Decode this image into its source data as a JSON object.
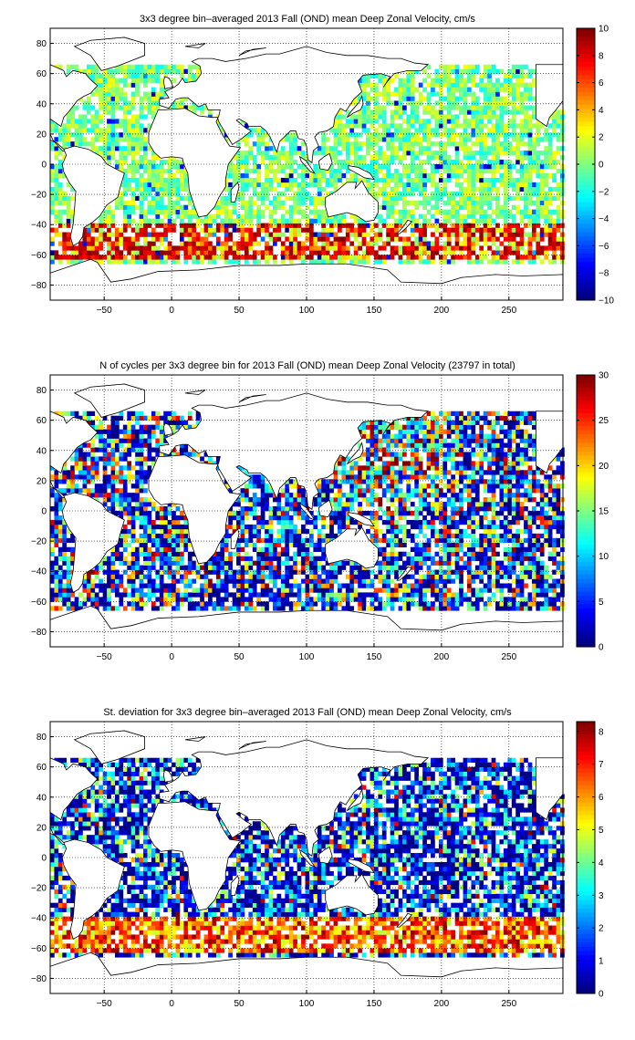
{
  "panels": [
    {
      "id": "velocity",
      "title": "3x3 degree bin–averaged 2013 Fall (OND) mean Deep Zonal Velocity, cm/s",
      "colorbar_ticks": [
        "10",
        "8",
        "6",
        "4",
        "2",
        "0",
        "−2",
        "−4",
        "−6",
        "−8",
        "−10"
      ]
    },
    {
      "id": "cycles",
      "title": "N of cycles per 3x3 degree bin for 2013 Fall (OND) mean Deep Zonal Velocity (23797 in total)",
      "colorbar_ticks": [
        "30",
        "25",
        "20",
        "15",
        "10",
        "5",
        "0"
      ]
    },
    {
      "id": "stdev",
      "title": "St. deviation for 3x3 degree bin–averaged 2013 Fall (OND) mean Deep Zonal Velocity, cm/s",
      "colorbar_ticks": [
        "8",
        "7",
        "6",
        "5",
        "4",
        "3",
        "2",
        "1",
        "0"
      ]
    }
  ],
  "chart_data": [
    {
      "type": "heatmap",
      "title": "3x3 degree bin–averaged 2013 Fall (OND) mean Deep Zonal Velocity, cm/s",
      "xlabel": "",
      "ylabel": "",
      "xlim": [
        -90,
        290
      ],
      "ylim": [
        -90,
        90
      ],
      "x_ticks": [
        -50,
        0,
        50,
        100,
        150,
        200,
        250
      ],
      "y_ticks": [
        80,
        60,
        40,
        20,
        0,
        -20,
        -40,
        -60,
        -80
      ],
      "grid": true,
      "bin_size_deg": 3,
      "colorbar": {
        "min": -10,
        "max": 10,
        "ticks": [
          10,
          8,
          6,
          4,
          2,
          0,
          -2,
          -4,
          -6,
          -8,
          -10
        ],
        "colormap": "jet"
      }
    },
    {
      "type": "heatmap",
      "title": "N of cycles per 3x3 degree bin for 2013 Fall (OND) mean Deep Zonal Velocity (23797 in total)",
      "xlabel": "",
      "ylabel": "",
      "xlim": [
        -90,
        290
      ],
      "ylim": [
        -90,
        90
      ],
      "x_ticks": [
        -50,
        0,
        50,
        100,
        150,
        200,
        250
      ],
      "y_ticks": [
        80,
        60,
        40,
        20,
        0,
        -20,
        -40,
        -60,
        -80
      ],
      "grid": true,
      "bin_size_deg": 3,
      "total_cycles": 23797,
      "colorbar": {
        "min": 0,
        "max": 30,
        "ticks": [
          30,
          25,
          20,
          15,
          10,
          5,
          0
        ],
        "colormap": "jet"
      }
    },
    {
      "type": "heatmap",
      "title": "St. deviation for 3x3 degree bin–averaged 2013 Fall (OND) mean Deep Zonal Velocity, cm/s",
      "xlabel": "",
      "ylabel": "",
      "xlim": [
        -90,
        290
      ],
      "ylim": [
        -90,
        90
      ],
      "x_ticks": [
        -50,
        0,
        50,
        100,
        150,
        200,
        250
      ],
      "y_ticks": [
        80,
        60,
        40,
        20,
        0,
        -20,
        -40,
        -60,
        -80
      ],
      "grid": true,
      "bin_size_deg": 3,
      "colorbar": {
        "min": 0,
        "max": 8.3,
        "ticks": [
          8,
          7,
          6,
          5,
          4,
          3,
          2,
          1,
          0
        ],
        "colormap": "jet"
      }
    }
  ]
}
